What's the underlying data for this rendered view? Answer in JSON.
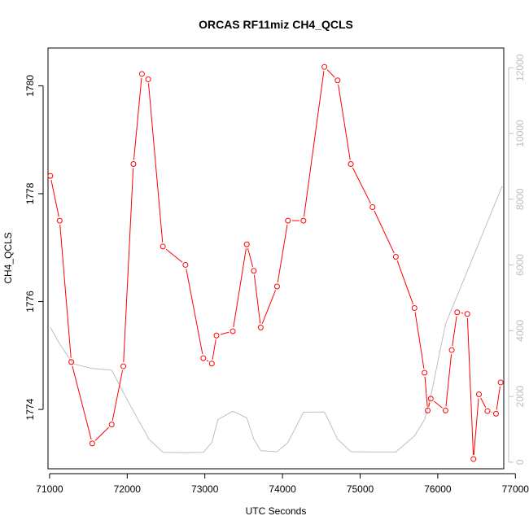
{
  "chart_data": {
    "type": "line",
    "title": "ORCAS RF11miz CH4_QCLS",
    "xlabel": "UTC Seconds",
    "ylabel": "CH4_QCLS",
    "xlim": [
      70980,
      76850
    ],
    "ylim": [
      1772.9,
      1780.7
    ],
    "y2lim": [
      -200,
      12600
    ],
    "x_ticks": [
      "71000",
      "72000",
      "73000",
      "74000",
      "75000",
      "76000",
      "77000"
    ],
    "y_ticks": [
      "1774",
      "1776",
      "1778",
      "1780"
    ],
    "y2_ticks": [
      "0",
      "2000",
      "4000",
      "6000",
      "8000",
      "10000",
      "12000"
    ],
    "grid": false,
    "series": [
      {
        "color": "#ff0000",
        "marker": "circle",
        "x": [
          71010,
          71130,
          71280,
          71550,
          71800,
          71950,
          72080,
          72190,
          72270,
          72460,
          72750,
          72980,
          73090,
          73150,
          73360,
          73540,
          73630,
          73720,
          73930,
          74070,
          74270,
          74540,
          74710,
          74880,
          75160,
          75460,
          75700,
          75830,
          75870,
          75910,
          76100,
          76180,
          76250,
          76380,
          76460,
          76530,
          76640,
          76750,
          76810
        ],
        "y": [
          1778.33,
          1777.5,
          1774.88,
          1773.37,
          1773.72,
          1774.8,
          1778.55,
          1780.22,
          1780.12,
          1777.02,
          1776.68,
          1774.95,
          1774.85,
          1775.37,
          1775.45,
          1777.06,
          1776.57,
          1775.52,
          1776.28,
          1777.5,
          1777.5,
          1780.35,
          1780.1,
          1778.55,
          1777.75,
          1776.83,
          1775.88,
          1774.68,
          1773.98,
          1774.2,
          1773.98,
          1775.1,
          1775.8,
          1775.77,
          1773.08,
          1774.28,
          1773.97,
          1773.92,
          1774.5
        ]
      },
      {
        "color": "#bebebe",
        "axis": "right",
        "x": [
          71010,
          71130,
          71300,
          71550,
          71800,
          72000,
          72280,
          72460,
          72750,
          72980,
          73090,
          73170,
          73360,
          73540,
          73630,
          73720,
          73930,
          74070,
          74270,
          74540,
          74710,
          74880,
          75160,
          75460,
          75700,
          75830,
          75910,
          76100,
          76830
        ],
        "y": [
          4100,
          3600,
          3000,
          2850,
          2800,
          1900,
          700,
          300,
          290,
          300,
          600,
          1300,
          1550,
          1350,
          700,
          350,
          320,
          600,
          1520,
          1530,
          700,
          320,
          310,
          310,
          800,
          1300,
          2000,
          4200,
          8400
        ]
      }
    ]
  }
}
